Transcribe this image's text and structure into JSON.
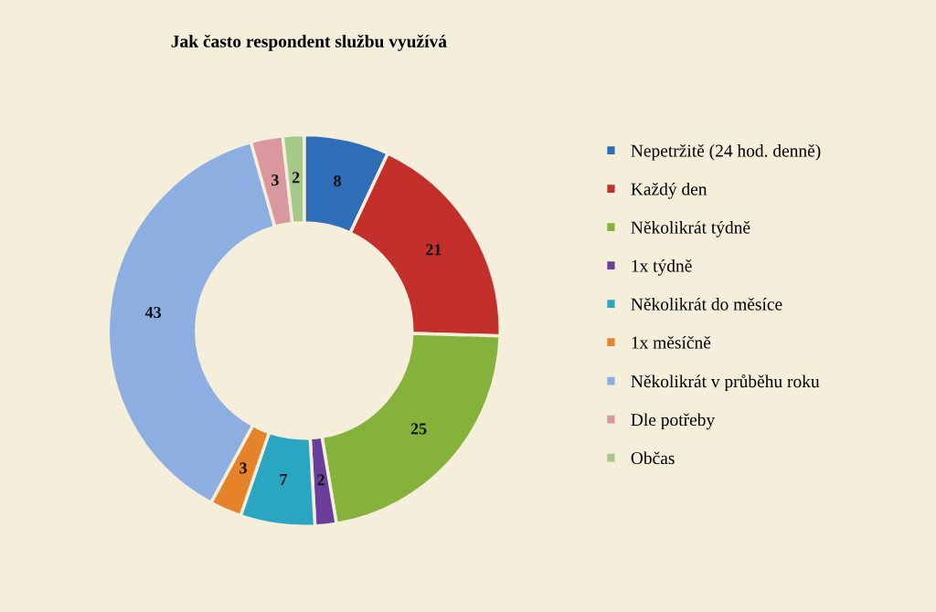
{
  "chart_data": {
    "type": "donut",
    "title": "Jak často respondent službu využívá",
    "categories": [
      "Nepetržitě (24 hod. denně)",
      "Každý den",
      "Několikrát týdně",
      "1x týdně",
      "Několikrát do měsíce",
      "1x měsíčně",
      "Několikrát v průběhu roku",
      "Dle potřeby",
      "Občas"
    ],
    "values": [
      8,
      21,
      25,
      2,
      7,
      3,
      43,
      3,
      2
    ],
    "colors": [
      "#2f6db8",
      "#c3302c",
      "#85b23b",
      "#6a3f9c",
      "#2aa6c2",
      "#e5832b",
      "#8caee0",
      "#d9979e",
      "#a6c98a"
    ],
    "data_labels": true,
    "legend": "right"
  }
}
